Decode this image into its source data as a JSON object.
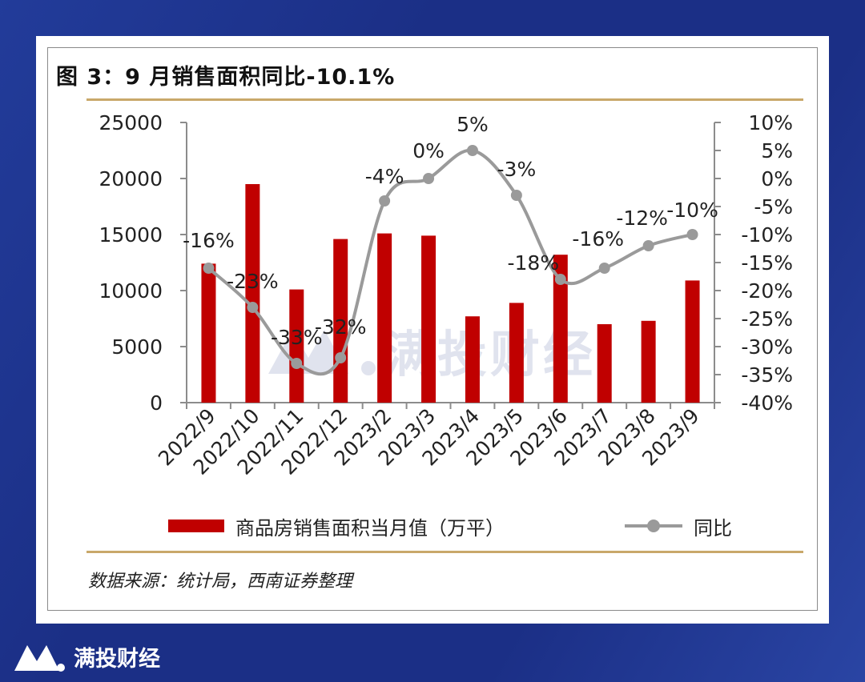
{
  "header": {
    "title": "图 3：9 月销售面积同比-10.1%"
  },
  "footer": {
    "source": "数据来源：统计局，西南证券整理"
  },
  "watermark": {
    "text": "满投财经"
  },
  "brand": {
    "name": "满投财经"
  },
  "colors": {
    "bar": "#c00000",
    "line": "#9a9a9a",
    "rule": "#c9a86a",
    "background": "#1b2f86"
  },
  "chart_data": {
    "type": "bar",
    "title": "图 3：9 月销售面积同比-10.1%",
    "categories": [
      "2022/9",
      "2022/10",
      "2022/11",
      "2022/12",
      "2023/2",
      "2023/3",
      "2023/4",
      "2023/5",
      "2023/6",
      "2023/7",
      "2023/8",
      "2023/9"
    ],
    "series": [
      {
        "name": "商品房销售面积当月值（万平）",
        "type": "bar",
        "axis": "left",
        "values": [
          12400,
          19500,
          10100,
          14600,
          15100,
          14900,
          7700,
          8900,
          13200,
          7000,
          7300,
          10900
        ]
      },
      {
        "name": "同比",
        "type": "line",
        "axis": "right",
        "values": [
          -16,
          -23,
          -33,
          -32,
          -4,
          0,
          5,
          -3,
          -18,
          -16,
          -12,
          -10
        ],
        "data_labels": [
          "-16%",
          "-23%",
          "-33%",
          "-32%",
          "-4%",
          "0%",
          "5%",
          "-3%",
          "-18%",
          "-16%",
          "-12%",
          "-10%"
        ]
      }
    ],
    "y_left": {
      "range": [
        0,
        25000
      ],
      "ticks": [
        "0",
        "5000",
        "10000",
        "15000",
        "20000",
        "25000"
      ]
    },
    "y_right": {
      "range": [
        -40,
        10
      ],
      "ticks": [
        "-40%",
        "-35%",
        "-30%",
        "-25%",
        "-20%",
        "-15%",
        "-10%",
        "-5%",
        "0%",
        "5%",
        "10%"
      ]
    },
    "grid": false,
    "legend": "bottom"
  }
}
